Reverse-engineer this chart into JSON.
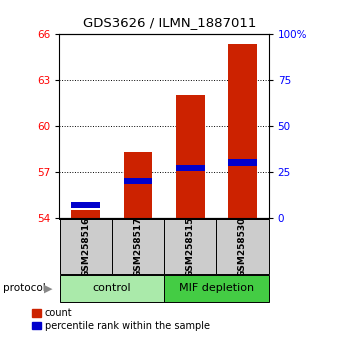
{
  "title": "GDS3626 / ILMN_1887011",
  "samples": [
    "GSM258516",
    "GSM258517",
    "GSM258515",
    "GSM258530"
  ],
  "count_values": [
    54.5,
    58.3,
    62.0,
    65.3
  ],
  "percentile_values": [
    7.0,
    20.0,
    27.0,
    30.0
  ],
  "groups": [
    {
      "label": "control",
      "samples": [
        0,
        1
      ],
      "color": "#aaeaaa"
    },
    {
      "label": "MIF depletion",
      "samples": [
        2,
        3
      ],
      "color": "#44cc44"
    }
  ],
  "ylim_left": [
    54,
    66
  ],
  "yticks_left": [
    54,
    57,
    60,
    63,
    66
  ],
  "ylim_right": [
    0,
    100
  ],
  "yticks_right": [
    0,
    25,
    50,
    75,
    100
  ],
  "bar_color_red": "#cc2200",
  "bar_color_blue": "#0000cc",
  "bar_base": 54,
  "bar_width": 0.55,
  "sample_label_bg": "#cccccc",
  "protocol_label": "protocol",
  "legend_count": "count",
  "legend_percentile": "percentile rank within the sample"
}
